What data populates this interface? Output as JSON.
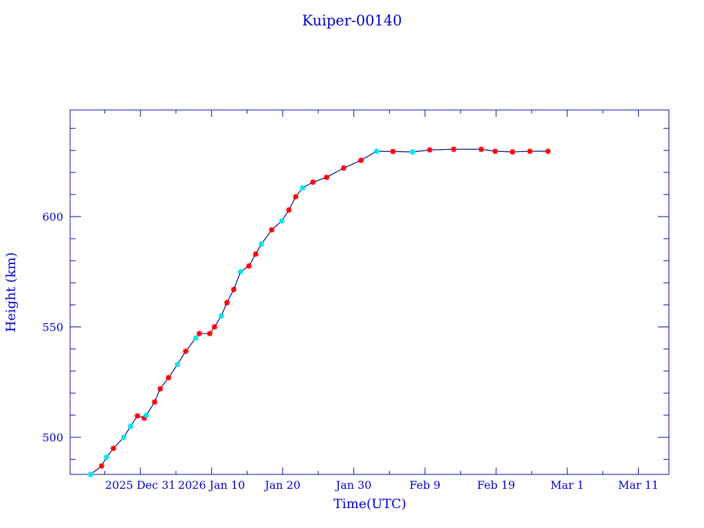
{
  "chart_data": {
    "type": "line",
    "title": "Kuiper-00140",
    "xlabel": "Time(UTC)",
    "ylabel": "Height (km)",
    "xlim": [
      "2025-12-21T03:00",
      "2026-03-15T07:00"
    ],
    "ylim": [
      483.2,
      648.3
    ],
    "grid": false,
    "x_tick_labels": [
      {
        "date": "2025-12-31",
        "label": "2025 Dec 31"
      },
      {
        "date": "2026-01-10",
        "label": "2026 Jan 10"
      },
      {
        "date": "2026-01-20",
        "label": "Jan 20"
      },
      {
        "date": "2026-01-30",
        "label": "Jan 30"
      },
      {
        "date": "2026-02-09",
        "label": "Feb  9"
      },
      {
        "date": "2026-02-19",
        "label": "Feb 19"
      },
      {
        "date": "2026-03-01",
        "label": "Mar  1"
      },
      {
        "date": "2026-03-11",
        "label": "Mar 11"
      }
    ],
    "y_tick_labels": [
      500,
      550,
      600
    ],
    "colors": {
      "axis": "#0000aa",
      "text": "#0000cc",
      "line": "#00008b",
      "marker_a": "#ff0000",
      "marker_b": "#00e5ee"
    },
    "points": [
      {
        "t": "2025-12-24T00:00",
        "h": 483.2,
        "m": "b"
      },
      {
        "t": "2025-12-25T13:00",
        "h": 487.0,
        "m": "a"
      },
      {
        "t": "2025-12-26T06:00",
        "h": 491.0,
        "m": "b"
      },
      {
        "t": "2025-12-27T05:00",
        "h": 495.0,
        "m": "a"
      },
      {
        "t": "2025-12-28T16:00",
        "h": 500.0,
        "m": "b"
      },
      {
        "t": "2025-12-29T15:00",
        "h": 505.0,
        "m": "b"
      },
      {
        "t": "2025-12-30T14:00",
        "h": 509.7,
        "m": "a"
      },
      {
        "t": "2025-12-31T13:00",
        "h": 508.7,
        "m": "a"
      },
      {
        "t": "2025-12-31T20:00",
        "h": 510.0,
        "m": "b"
      },
      {
        "t": "2026-01-02T00:00",
        "h": 516.0,
        "m": "a"
      },
      {
        "t": "2026-01-02T19:00",
        "h": 522.0,
        "m": "a"
      },
      {
        "t": "2026-01-03T23:00",
        "h": 527.0,
        "m": "a"
      },
      {
        "t": "2026-01-05T05:00",
        "h": 533.0,
        "m": "b"
      },
      {
        "t": "2026-01-06T09:00",
        "h": 539.0,
        "m": "a"
      },
      {
        "t": "2026-01-07T19:00",
        "h": 545.0,
        "m": "b"
      },
      {
        "t": "2026-01-08T07:00",
        "h": 547.0,
        "m": "a"
      },
      {
        "t": "2026-01-09T18:00",
        "h": 547.0,
        "m": "a"
      },
      {
        "t": "2026-01-10T10:00",
        "h": 550.0,
        "m": "a"
      },
      {
        "t": "2026-01-11T09:00",
        "h": 555.0,
        "m": "b"
      },
      {
        "t": "2026-01-12T04:00",
        "h": 561.0,
        "m": "a"
      },
      {
        "t": "2026-01-13T03:00",
        "h": 567.0,
        "m": "a"
      },
      {
        "t": "2026-01-14T02:00",
        "h": 575.0,
        "m": "b"
      },
      {
        "t": "2026-01-15T06:00",
        "h": 577.6,
        "m": "a"
      },
      {
        "t": "2026-01-16T05:00",
        "h": 583.0,
        "m": "a"
      },
      {
        "t": "2026-01-17T00:00",
        "h": 587.5,
        "m": "b"
      },
      {
        "t": "2026-01-18T11:00",
        "h": 594.0,
        "m": "a"
      },
      {
        "t": "2026-01-19T21:00",
        "h": 598.0,
        "m": "b"
      },
      {
        "t": "2026-01-20T21:00",
        "h": 603.0,
        "m": "a"
      },
      {
        "t": "2026-01-21T20:00",
        "h": 609.0,
        "m": "a"
      },
      {
        "t": "2026-01-22T19:00",
        "h": 613.0,
        "m": "b"
      },
      {
        "t": "2026-01-24T06:00",
        "h": 615.6,
        "m": "a"
      },
      {
        "t": "2026-01-26T04:00",
        "h": 617.8,
        "m": "a"
      },
      {
        "t": "2026-01-28T14:00",
        "h": 622.0,
        "m": "a"
      },
      {
        "t": "2026-01-31T00:00",
        "h": 625.5,
        "m": "a"
      },
      {
        "t": "2026-02-02T05:00",
        "h": 629.6,
        "m": "b"
      },
      {
        "t": "2026-02-04T12:00",
        "h": 629.5,
        "m": "a"
      },
      {
        "t": "2026-02-07T06:00",
        "h": 629.3,
        "m": "b"
      },
      {
        "t": "2026-02-09T16:00",
        "h": 630.2,
        "m": "a"
      },
      {
        "t": "2026-02-13T01:00",
        "h": 630.5,
        "m": "a"
      },
      {
        "t": "2026-02-16T22:00",
        "h": 630.5,
        "m": "a"
      },
      {
        "t": "2026-02-18T21:00",
        "h": 629.6,
        "m": "a"
      },
      {
        "t": "2026-02-21T07:00",
        "h": 629.3,
        "m": "a"
      },
      {
        "t": "2026-02-23T18:00",
        "h": 629.6,
        "m": "a"
      },
      {
        "t": "2026-02-26T07:00",
        "h": 629.6,
        "m": "a"
      }
    ]
  }
}
